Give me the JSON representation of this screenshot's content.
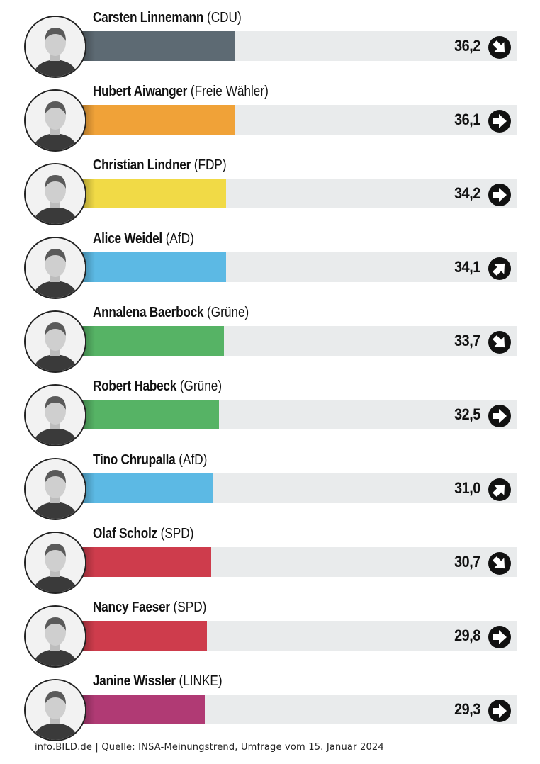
{
  "chart_data": {
    "type": "bar",
    "orientation": "horizontal",
    "xlim": [
      0,
      100
    ],
    "items": [
      {
        "name": "Carsten Linnemann",
        "party": "(CDU)",
        "value": 36.2,
        "label": "36,2",
        "trend": "down",
        "color": "#5d6a73"
      },
      {
        "name": "Hubert Aiwanger",
        "party": "(Freie Wähler)",
        "value": 36.1,
        "label": "36,1",
        "trend": "right",
        "color": "#f0a238"
      },
      {
        "name": "Christian Lindner",
        "party": "(FDP)",
        "value": 34.2,
        "label": "34,2",
        "trend": "right",
        "color": "#f1da46"
      },
      {
        "name": "Alice Weidel",
        "party": "(AfD)",
        "value": 34.1,
        "label": "34,1",
        "trend": "up",
        "color": "#5cb9e4"
      },
      {
        "name": "Annalena Baerbock",
        "party": "(Grüne)",
        "value": 33.7,
        "label": "33,7",
        "trend": "down",
        "color": "#56b365"
      },
      {
        "name": "Robert Habeck",
        "party": "(Grüne)",
        "value": 32.5,
        "label": "32,5",
        "trend": "right",
        "color": "#56b365"
      },
      {
        "name": "Tino Chrupalla",
        "party": "(AfD)",
        "value": 31.0,
        "label": "31,0",
        "trend": "up",
        "color": "#5cb9e4"
      },
      {
        "name": "Olaf Scholz",
        "party": "(SPD)",
        "value": 30.7,
        "label": "30,7",
        "trend": "down",
        "color": "#ce3c4c"
      },
      {
        "name": "Nancy Faeser",
        "party": "(SPD)",
        "value": 29.8,
        "label": "29,8",
        "trend": "right",
        "color": "#ce3c4c"
      },
      {
        "name": "Janine Wissler",
        "party": "(LINKE)",
        "value": 29.3,
        "label": "29,3",
        "trend": "right",
        "color": "#b03a74"
      }
    ]
  },
  "footer": {
    "source": "info.BILD.de | Quelle: INSA-Meinungstrend, Umfrage vom 15. Januar 2024"
  }
}
